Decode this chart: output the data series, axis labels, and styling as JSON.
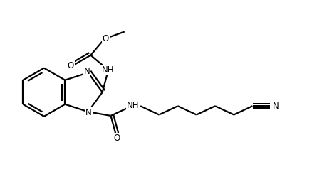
{
  "bg_color": "#ffffff",
  "line_color": "#000000",
  "line_width": 1.6,
  "font_size_atom": 8.5,
  "fig_width": 4.38,
  "fig_height": 2.42,
  "dpi": 100,
  "xlim": [
    0,
    10
  ],
  "ylim": [
    0,
    5.5
  ]
}
